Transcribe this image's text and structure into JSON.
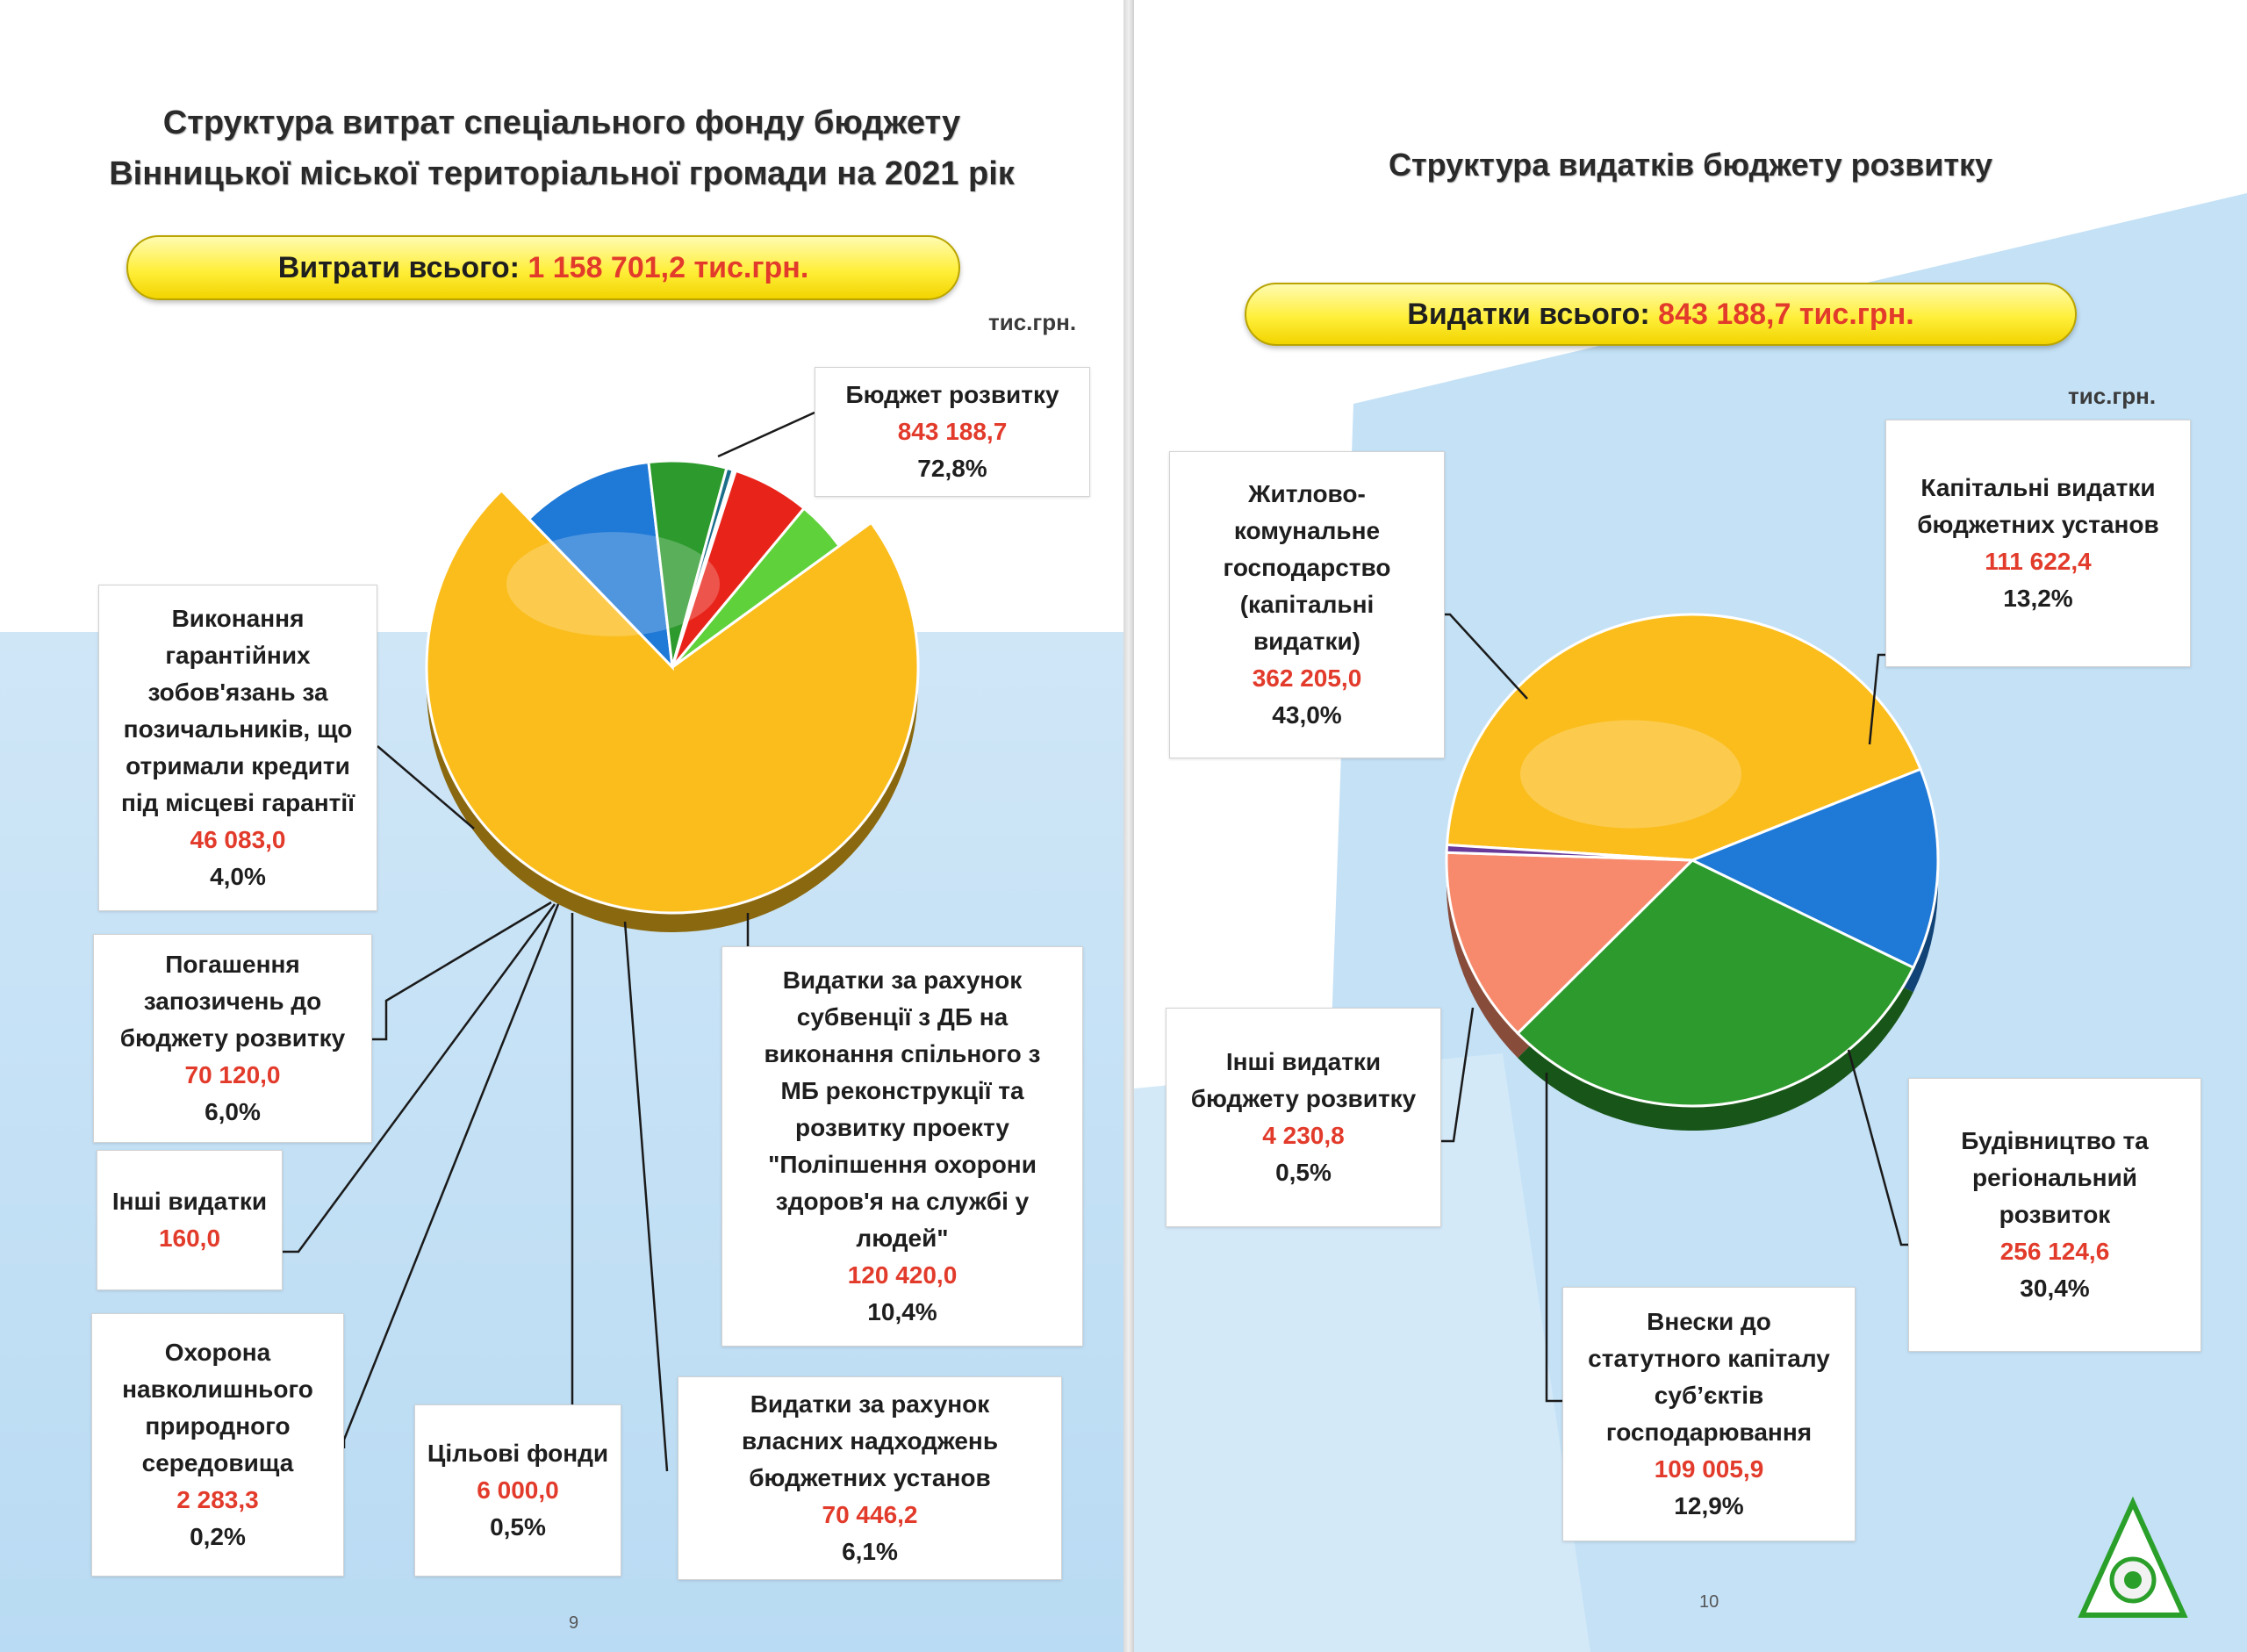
{
  "left": {
    "title_line1": "Структура витрат спеціального фонду бюджету",
    "title_line2": "Вінницької міської територіальної громади на 2021 рік",
    "total_label": "Витрати всього:",
    "total_value": "1 158 701,2  тис.грн.",
    "unit": "тис.грн.",
    "page_number": "9"
  },
  "right": {
    "title": "Структура видатків бюджету розвитку",
    "total_label": "Видатки всього:",
    "total_value": "843 188,7 тис.грн.",
    "unit": "тис.грн.",
    "page_number": "10"
  },
  "chart_data": [
    {
      "type": "pie",
      "slices": [
        {
          "label": "Бюджет розвитку",
          "value": 843188.7,
          "value_text": "843 188,7",
          "percent_text": "72,8%",
          "color": "#fbbd1c"
        },
        {
          "label": "Видатки за рахунок субвенції з ДБ на виконання спільного з МБ реконструкції та розвитку проекту \"Поліпшення охорони здоров'я на службі у людей\"",
          "value": 120420.0,
          "value_text": "120 420,0",
          "percent_text": "10,4%",
          "color": "#1f79d6"
        },
        {
          "label": "Видатки за рахунок власних надходжень бюджетних установ",
          "value": 70446.2,
          "value_text": "70 446,2",
          "percent_text": "6,1%",
          "color": "#2c9a2c"
        },
        {
          "label": "Цільові фонди",
          "value": 6000.0,
          "value_text": "6 000,0",
          "percent_text": "0,5%",
          "color": "#1b6e8a"
        },
        {
          "label": "Охорона навколишнього природного середовища",
          "value": 2283.3,
          "value_text": "2 283,3",
          "percent_text": "0,2%",
          "color": "#f4a7a7"
        },
        {
          "label": "Інші видатки",
          "value": 160.0,
          "value_text": "160,0",
          "percent_text": "",
          "color": "#7a5a3a"
        },
        {
          "label": "Погашення запозичень до бюджету розвитку",
          "value": 70120.0,
          "value_text": "70 120,0",
          "percent_text": "6,0%",
          "color": "#e8241a"
        },
        {
          "label": "Виконання гарантійних зобов'язань за позичальників, що отримали кредити під місцеві гарантії",
          "value": 46083.0,
          "value_text": "46 083,0",
          "percent_text": "4,0%",
          "color": "#5fd13a"
        }
      ]
    },
    {
      "type": "pie",
      "slices": [
        {
          "label": "Житлово-комунальне господарство (капітальні видатки)",
          "value": 362205.0,
          "value_text": "362 205,0",
          "percent_text": "43,0%",
          "color": "#fbbd1c"
        },
        {
          "label": "Капітальні видатки бюджетних установ",
          "value": 111622.4,
          "value_text": "111 622,4",
          "percent_text": "13,2%",
          "color": "#1f79d6"
        },
        {
          "label": "Будівництво та регіональний розвиток",
          "value": 256124.6,
          "value_text": "256 124,6",
          "percent_text": "30,4%",
          "color": "#2c9a2c"
        },
        {
          "label": "Внески до статутного капіталу суб’єктів господарювання",
          "value": 109005.9,
          "value_text": "109 005,9",
          "percent_text": "12,9%",
          "color": "#f78a6c"
        },
        {
          "label": "Інші видатки бюджету розвитку",
          "value": 4230.8,
          "value_text": "4 230,8",
          "percent_text": "0,5%",
          "color": "#6a3a9a"
        }
      ]
    }
  ],
  "left_boxes": [
    {
      "lines": [
        "Бюджет розвитку"
      ]
    },
    {
      "lines": [
        "Видатки за рахунок",
        "субвенції з ДБ на",
        "виконання спільного з",
        "МБ реконструкції та",
        "розвитку проекту",
        "\"Поліпшення охорони",
        "здоров'я на службі у",
        "людей\""
      ]
    },
    {
      "lines": [
        "Видатки за рахунок",
        "власних надходжень",
        "бюджетних установ"
      ]
    },
    {
      "lines": [
        "Цільові фонди"
      ]
    },
    {
      "lines": [
        "Охорона",
        "навколишнього",
        "природного",
        "середовища"
      ]
    },
    {
      "lines": [
        "Інші видатки"
      ]
    },
    {
      "lines": [
        "Погашення",
        "запозичень до",
        "бюджету розвитку"
      ]
    },
    {
      "lines": [
        "Виконання",
        "гарантійних",
        "зобов'язань за",
        "позичальників, що",
        "отримали кредити",
        "під місцеві гарантії"
      ]
    }
  ],
  "right_boxes": [
    {
      "lines": [
        "Житлово-",
        "комунальне",
        "господарство",
        "(капітальні",
        "видатки)"
      ]
    },
    {
      "lines": [
        "Капітальні видатки",
        "бюджетних установ"
      ]
    },
    {
      "lines": [
        "Будівництво та",
        "регіональний",
        "розвиток"
      ]
    },
    {
      "lines": [
        "Внески до",
        "статутного капіталу",
        "суб’єктів",
        "господарювання"
      ]
    },
    {
      "lines": [
        "Інші видатки",
        "бюджету розвитку"
      ]
    }
  ]
}
